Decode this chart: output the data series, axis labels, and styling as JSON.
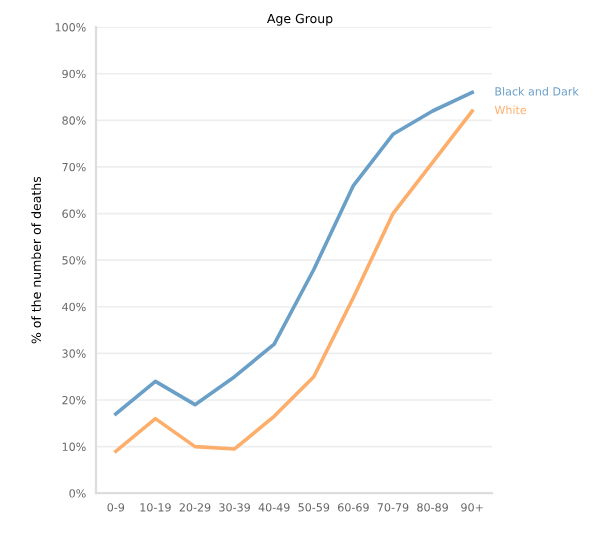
{
  "chart_data": {
    "type": "line",
    "title": "Age Group",
    "ylabel": "% of the number of deaths",
    "categories": [
      "0-9",
      "10-19",
      "20-29",
      "30-39",
      "40-49",
      "50-59",
      "60-69",
      "70-79",
      "80-89",
      "90+"
    ],
    "series": [
      {
        "name": "Black and Dark",
        "color": "#6a9fc8",
        "values": [
          17,
          24,
          19,
          25,
          32,
          48,
          66,
          77,
          82,
          86
        ]
      },
      {
        "name": "White",
        "color": "#fdae6b",
        "values": [
          9,
          16,
          10,
          9.5,
          16.5,
          25,
          42,
          60,
          71,
          82
        ]
      }
    ],
    "ylim": [
      0,
      100
    ],
    "yticks": [
      {
        "value": 0,
        "label": "0%"
      },
      {
        "value": 10,
        "label": "10%"
      },
      {
        "value": 20,
        "label": "20%"
      },
      {
        "value": 30,
        "label": "30%"
      },
      {
        "value": 40,
        "label": "40%"
      },
      {
        "value": 50,
        "label": "50%"
      },
      {
        "value": 60,
        "label": "60%"
      },
      {
        "value": 70,
        "label": "70%"
      },
      {
        "value": 80,
        "label": "80%"
      },
      {
        "value": 90,
        "label": "90%"
      },
      {
        "value": 100,
        "label": "100%"
      }
    ],
    "grid": "y"
  }
}
